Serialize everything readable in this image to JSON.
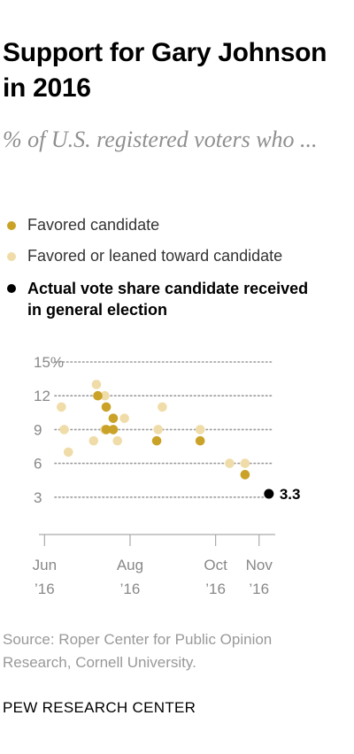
{
  "header": {
    "title": "Support for Gary Johnson in 2016",
    "subtitle": "% of U.S. registered voters who ..."
  },
  "legend": [
    {
      "label": "Favored candidate",
      "color": "#c9a227"
    },
    {
      "label": "Favored or leaned toward candidate",
      "color": "#f0dca8"
    },
    {
      "label": "Actual vote share candidate received in general election",
      "color": "#000000"
    }
  ],
  "chart_data": {
    "type": "scatter",
    "title": "Support for Gary Johnson in 2016",
    "subtitle": "% of U.S. registered voters who ...",
    "ylim": [
      0,
      15
    ],
    "y_ticks": [
      "15%",
      "12",
      "9",
      "6",
      "3"
    ],
    "y_tick_values": [
      15,
      12,
      9,
      6,
      3
    ],
    "x_ticks": [
      {
        "date": "2016-06-01",
        "line1": "Jun",
        "line2": "’16"
      },
      {
        "date": "2016-08-01",
        "line1": "Aug",
        "line2": "’16"
      },
      {
        "date": "2016-10-01",
        "line1": "Oct",
        "line2": "’16"
      },
      {
        "date": "2016-11-01",
        "line1": "Nov",
        "line2": "’16"
      }
    ],
    "xlim": [
      "2016-05-28",
      "2016-11-10"
    ],
    "grid": "horizontal dotted",
    "series": [
      {
        "name": "Favored or leaned toward candidate",
        "color": "#f0dca8",
        "points": [
          {
            "x": "2016-06-13",
            "y": 11
          },
          {
            "x": "2016-06-15",
            "y": 9
          },
          {
            "x": "2016-06-18",
            "y": 7
          },
          {
            "x": "2016-07-06",
            "y": 8
          },
          {
            "x": "2016-07-08",
            "y": 13
          },
          {
            "x": "2016-07-14",
            "y": 12
          },
          {
            "x": "2016-07-14",
            "y": 9
          },
          {
            "x": "2016-07-23",
            "y": 8
          },
          {
            "x": "2016-07-28",
            "y": 10
          },
          {
            "x": "2016-08-21",
            "y": 9
          },
          {
            "x": "2016-08-24",
            "y": 11
          },
          {
            "x": "2016-09-20",
            "y": 9
          },
          {
            "x": "2016-10-11",
            "y": 6
          },
          {
            "x": "2016-10-22",
            "y": 6
          }
        ]
      },
      {
        "name": "Favored candidate",
        "color": "#c9a227",
        "points": [
          {
            "x": "2016-07-09",
            "y": 12
          },
          {
            "x": "2016-07-15",
            "y": 11
          },
          {
            "x": "2016-07-15",
            "y": 9
          },
          {
            "x": "2016-07-20",
            "y": 10
          },
          {
            "x": "2016-07-20",
            "y": 9
          },
          {
            "x": "2016-08-20",
            "y": 8
          },
          {
            "x": "2016-09-20",
            "y": 8
          },
          {
            "x": "2016-10-22",
            "y": 5
          }
        ]
      },
      {
        "name": "Actual vote share candidate received in general election",
        "color": "#000000",
        "points": [
          {
            "x": "2016-11-08",
            "y": 3.3,
            "label": "3.3"
          }
        ]
      }
    ]
  },
  "footer": {
    "source": "Source: Roper Center for Public Opinion Research, Cornell University.",
    "brand": "PEW RESEARCH CENTER"
  }
}
